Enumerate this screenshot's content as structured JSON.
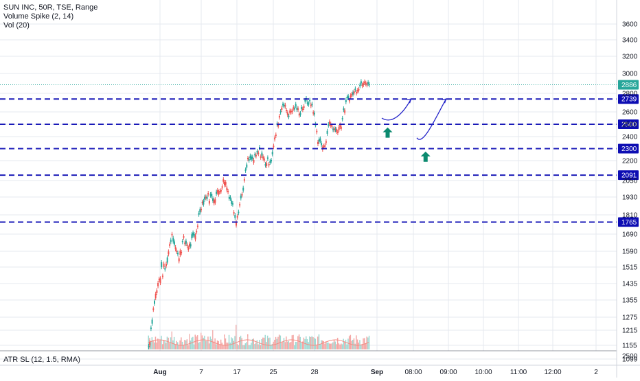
{
  "legend": {
    "symbol_line": "SUN INC, 50R, TSE, Range",
    "indicator_1": "Volume Spike (2, 14)",
    "indicator_2": "Vol (20)"
  },
  "atr_pane": {
    "label": "ATR SL (12, 1.5, RMA)",
    "axis_tick": "2500"
  },
  "colors": {
    "up": "#26a69a",
    "down": "#ef5350",
    "level_line": "#1a1ab8",
    "level_badge": "#0d0db3",
    "last_price_badge": "#26a69a",
    "arrow": "#0b8a6f",
    "projection": "#2424c9",
    "axis_text": "#131722",
    "grid": "#e6e9ef"
  },
  "chart_data": {
    "type": "candlestick-range",
    "title": "SUN INC, 50R, TSE, Range",
    "y_ticks": [
      3600,
      3400,
      3200,
      3000,
      2800,
      2600,
      2500,
      2400,
      2200,
      2050,
      1930,
      1810,
      1690,
      1590,
      1515,
      1435,
      1355,
      1275,
      1215,
      1155,
      1099
    ],
    "x_ticks": [
      "Aug",
      "7",
      "17",
      "25",
      "28",
      "Sep",
      "08:00",
      "09:00",
      "10:00",
      "11:00",
      "12:00",
      "2"
    ],
    "price_levels": [
      {
        "label": "2739",
        "value": 2739
      },
      {
        "label": "2500",
        "value": 2500
      },
      {
        "label": "2300",
        "value": 2300
      },
      {
        "label": "2091",
        "value": 2091
      },
      {
        "label": "1765",
        "value": 1765
      }
    ],
    "last_price": {
      "label": "2886",
      "value": 2886
    },
    "price_path": [
      [
        0,
        1150
      ],
      [
        1,
        1350
      ],
      [
        2,
        1480
      ],
      [
        3,
        1520
      ],
      [
        4,
        1700
      ],
      [
        5,
        1560
      ],
      [
        6,
        1650
      ],
      [
        7,
        1620
      ],
      [
        8,
        1680
      ],
      [
        9,
        1880
      ],
      [
        10,
        1940
      ],
      [
        11,
        1920
      ],
      [
        12,
        1970
      ],
      [
        13,
        2060
      ],
      [
        14,
        1920
      ],
      [
        15,
        1790
      ],
      [
        16,
        1950
      ],
      [
        17,
        2200
      ],
      [
        18,
        2210
      ],
      [
        19,
        2280
      ],
      [
        20,
        2190
      ],
      [
        21,
        2210
      ],
      [
        22,
        2480
      ],
      [
        23,
        2700
      ],
      [
        24,
        2580
      ],
      [
        25,
        2650
      ],
      [
        26,
        2600
      ],
      [
        27,
        2720
      ],
      [
        28,
        2680
      ],
      [
        29,
        2380
      ],
      [
        30,
        2300
      ],
      [
        31,
        2520
      ],
      [
        32,
        2450
      ],
      [
        33,
        2500
      ],
      [
        34,
        2730
      ],
      [
        35,
        2800
      ],
      [
        36,
        2870
      ],
      [
        37,
        2940
      ],
      [
        38,
        2886
      ]
    ],
    "volume_spikes": [
      [
        4,
        1210
      ],
      [
        7,
        1200
      ],
      [
        9,
        1205
      ],
      [
        11,
        1215
      ],
      [
        13,
        1190
      ],
      [
        15,
        1240
      ],
      [
        17,
        1190
      ],
      [
        20,
        1130
      ],
      [
        23,
        1170
      ],
      [
        26,
        1120
      ],
      [
        30,
        1140
      ]
    ],
    "projection_paths": [
      {
        "points": [
          [
            40,
            2550
          ],
          [
            42,
            2490
          ],
          [
            44,
            2620
          ],
          [
            45,
            2739
          ]
        ]
      },
      {
        "points": [
          [
            46,
            2390
          ],
          [
            47,
            2320
          ],
          [
            49,
            2530
          ],
          [
            51,
            2739
          ]
        ]
      }
    ],
    "buy_arrows": [
      {
        "x": 41,
        "y": 2430
      },
      {
        "x": 47.5,
        "y": 2230
      }
    ]
  }
}
